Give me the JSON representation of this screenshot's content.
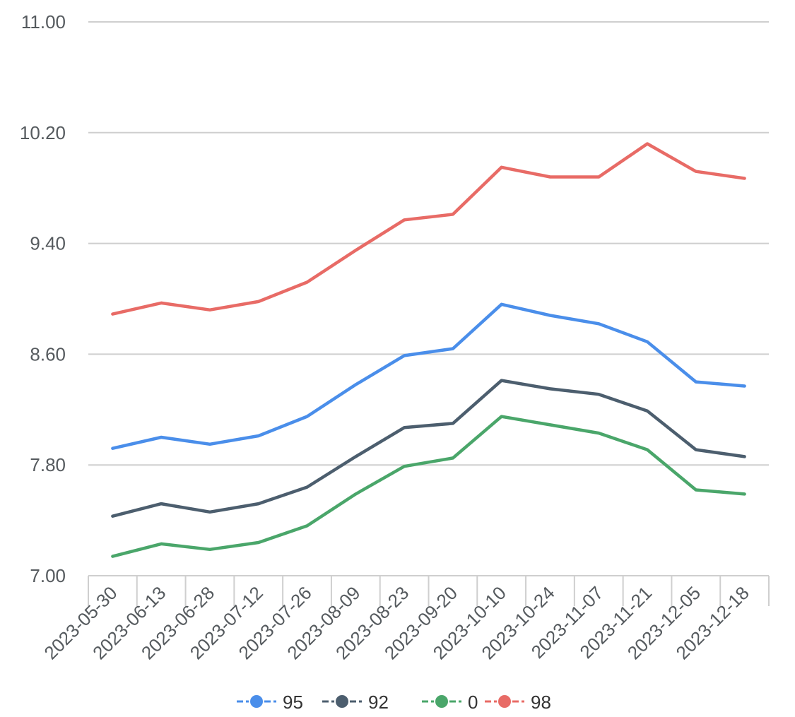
{
  "chart_data": {
    "type": "line",
    "x": [
      "2023-05-30",
      "2023-06-13",
      "2023-06-28",
      "2023-07-12",
      "2023-07-26",
      "2023-08-09",
      "2023-08-23",
      "2023-09-20",
      "2023-10-10",
      "2023-10-24",
      "2023-11-07",
      "2023-11-21",
      "2023-12-05",
      "2023-12-18"
    ],
    "ylim": [
      7.0,
      11.0
    ],
    "yticks": [
      "7.00",
      "7.80",
      "8.60",
      "9.40",
      "10.20",
      "11.00"
    ],
    "grid": true,
    "legend_position": "bottom-center",
    "series": [
      {
        "name": "95",
        "color": "#4a8eea",
        "values": [
          7.92,
          8.0,
          7.95,
          8.01,
          8.15,
          8.38,
          8.59,
          8.64,
          8.96,
          8.88,
          8.82,
          8.69,
          8.4,
          8.37
        ]
      },
      {
        "name": "92",
        "color": "#4c5e6e",
        "values": [
          7.43,
          7.52,
          7.46,
          7.52,
          7.64,
          7.86,
          8.07,
          8.1,
          8.41,
          8.35,
          8.31,
          8.19,
          7.91,
          7.86
        ]
      },
      {
        "name": "0",
        "color": "#4aa66a",
        "values": [
          7.14,
          7.23,
          7.19,
          7.24,
          7.36,
          7.59,
          7.79,
          7.85,
          8.15,
          8.09,
          8.03,
          7.91,
          7.62,
          7.59
        ]
      },
      {
        "name": "98",
        "color": "#e86b66",
        "values": [
          8.89,
          8.97,
          8.92,
          8.98,
          9.12,
          9.35,
          9.57,
          9.61,
          9.95,
          9.88,
          9.88,
          10.12,
          9.92,
          9.87
        ]
      }
    ]
  }
}
